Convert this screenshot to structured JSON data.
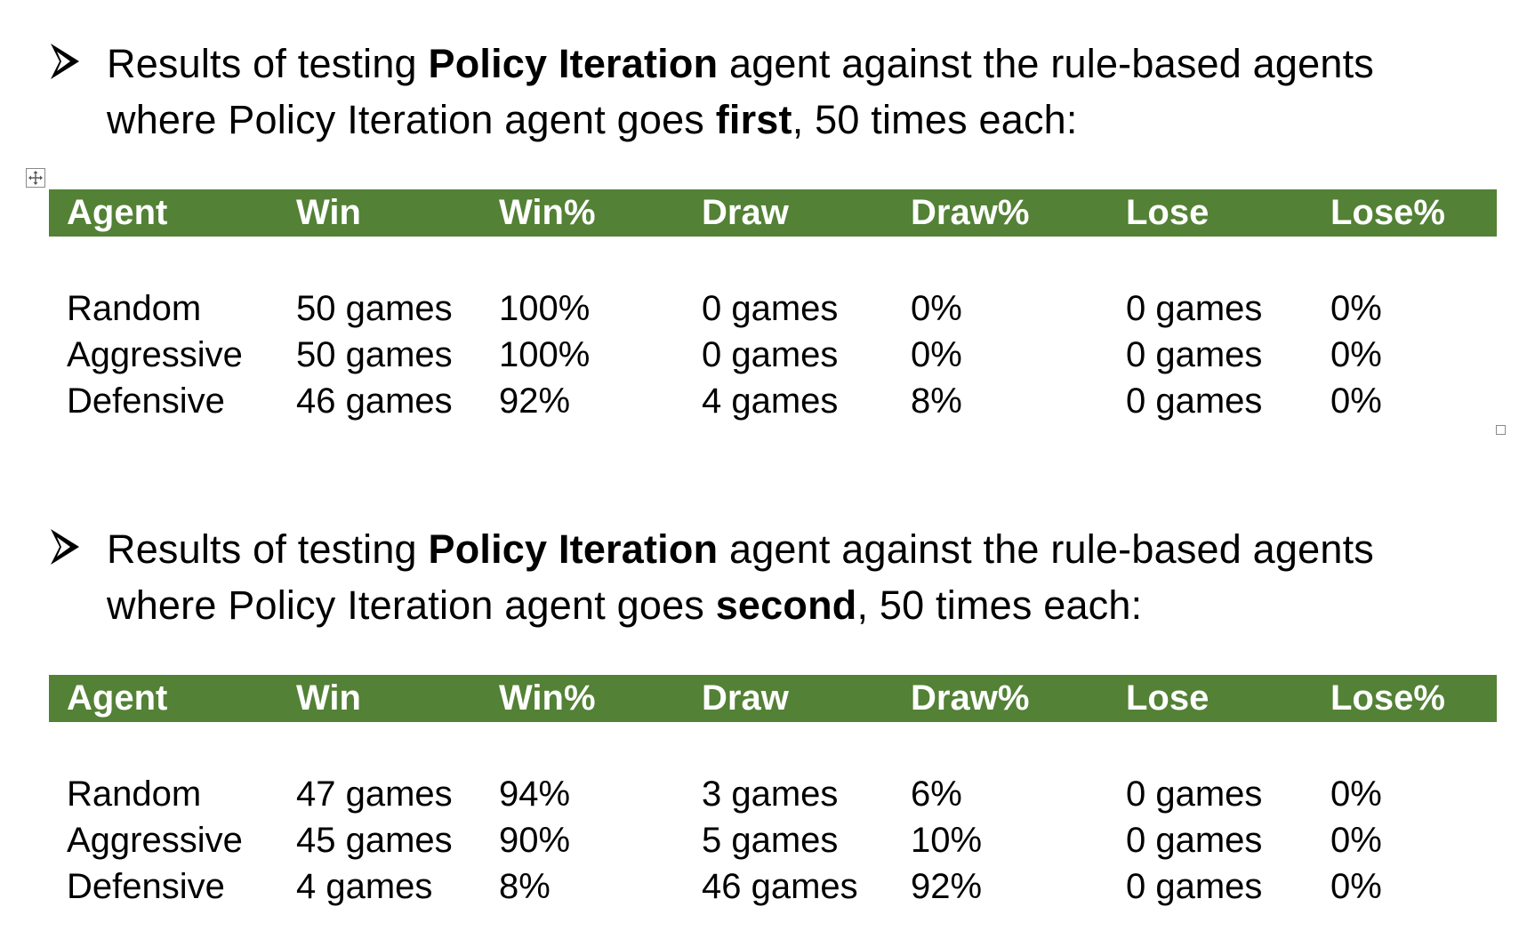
{
  "sections": [
    {
      "bullet": {
        "icon": "arrowhead-bullet-icon",
        "text_before": "Results of testing ",
        "bold_1": "Policy Iteration",
        "text_middle": " agent against the rule-based agents where Policy Iteration agent goes ",
        "bold_2": "first",
        "text_after": ", 50 times each:"
      },
      "table": {
        "header_color": "#538135",
        "headers": [
          "Agent",
          "Win",
          "Win%",
          "Draw",
          "Draw%",
          "Lose",
          "Lose%"
        ],
        "rows": [
          [
            "Random",
            "50 games",
            "100%",
            "0 games",
            "0%",
            "0 games",
            "0%"
          ],
          [
            "Aggressive",
            "50 games",
            "100%",
            "0 games",
            "0%",
            "0 games",
            "0%"
          ],
          [
            "Defensive",
            "46 games",
            "92%",
            "4 games",
            "8%",
            "0 games",
            "0%"
          ]
        ]
      }
    },
    {
      "bullet": {
        "icon": "arrowhead-bullet-icon",
        "text_before": "Results of testing ",
        "bold_1": "Policy Iteration",
        "text_middle": " agent against the rule-based agents where Policy Iteration agent goes ",
        "bold_2": "second",
        "text_after": ", 50 times each:"
      },
      "table": {
        "header_color": "#538135",
        "headers": [
          "Agent",
          "Win",
          "Win%",
          "Draw",
          "Draw%",
          "Lose",
          "Lose%"
        ],
        "rows": [
          [
            "Random",
            "47 games",
            "94%",
            "3 games",
            "6%",
            "0 games",
            "0%"
          ],
          [
            "Aggressive",
            "45 games",
            "90%",
            "5 games",
            "10%",
            "0 games",
            "0%"
          ],
          [
            "Defensive",
            "4 games",
            "8%",
            "46 games",
            "92%",
            "0 games",
            "0%"
          ]
        ]
      }
    }
  ],
  "ui": {
    "table_move_handle_icon": "table-move-handle-icon",
    "table_resize_handle_icon": "table-resize-handle-icon"
  }
}
